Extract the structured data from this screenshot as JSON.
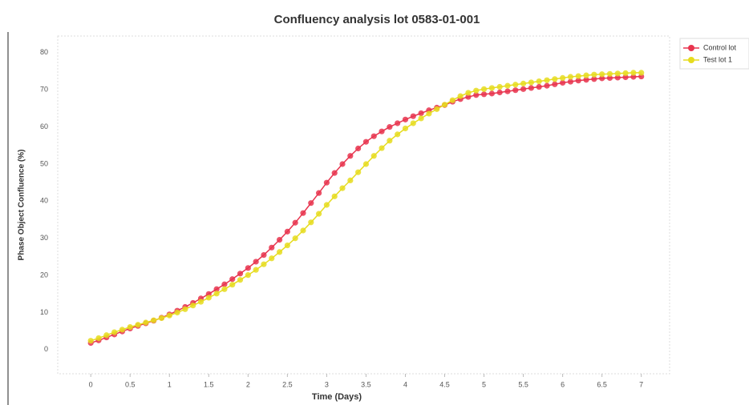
{
  "chart_data": {
    "type": "line",
    "title": "Confluency analysis lot 0583-01-001",
    "x_label": "Time (Days)",
    "y_label": "Phase Object Confluence (%)",
    "x": [
      0,
      0.1,
      0.2,
      0.3,
      0.4,
      0.5,
      0.6,
      0.7,
      0.8,
      0.9,
      1,
      1.1,
      1.2,
      1.3,
      1.4,
      1.5,
      1.6,
      1.7,
      1.8,
      1.9,
      2,
      2.1,
      2.2,
      2.3,
      2.4,
      2.5,
      2.6,
      2.7,
      2.8,
      2.9,
      3,
      3.1,
      3.2,
      3.3,
      3.4,
      3.5,
      3.6,
      3.7,
      3.8,
      3.9,
      4,
      4.1,
      4.2,
      4.3,
      4.4,
      4.5,
      4.6,
      4.7,
      4.8,
      4.9,
      5,
      5.1,
      5.2,
      5.3,
      5.4,
      5.5,
      5.6,
      5.7,
      5.8,
      5.9,
      6,
      6.1,
      6.2,
      6.3,
      6.4,
      6.5,
      6.6,
      6.7,
      6.8,
      6.9,
      7
    ],
    "series": [
      {
        "name": "Control lot",
        "color": "#e8344e",
        "values": [
          1.8,
          2.5,
          3.3,
          4.1,
          4.9,
          5.7,
          6.4,
          7.1,
          7.8,
          8.6,
          9.5,
          10.5,
          11.5,
          12.6,
          13.8,
          15.0,
          16.3,
          17.6,
          19.0,
          20.5,
          22.0,
          23.7,
          25.5,
          27.5,
          29.6,
          31.8,
          34.2,
          36.8,
          39.5,
          42.2,
          45.0,
          47.6,
          50.0,
          52.2,
          54.2,
          56.0,
          57.5,
          58.8,
          60.0,
          61.0,
          62.0,
          62.9,
          63.7,
          64.5,
          65.2,
          65.9,
          66.8,
          67.5,
          68.1,
          68.6,
          68.8,
          69.0,
          69.3,
          69.6,
          69.9,
          70.2,
          70.5,
          70.8,
          71.1,
          71.5,
          71.9,
          72.2,
          72.5,
          72.7,
          72.9,
          73.1,
          73.2,
          73.3,
          73.4,
          73.5,
          73.6
        ]
      },
      {
        "name": "Test lot 1",
        "color": "#e6dc1e",
        "values": [
          2.4,
          3.1,
          3.9,
          4.7,
          5.4,
          6.1,
          6.7,
          7.3,
          7.9,
          8.5,
          9.2,
          10.0,
          10.9,
          11.9,
          12.9,
          14.0,
          15.1,
          16.3,
          17.5,
          18.8,
          20.1,
          21.5,
          23.0,
          24.6,
          26.3,
          28.1,
          30.0,
          32.1,
          34.3,
          36.6,
          39.0,
          41.3,
          43.5,
          45.6,
          47.8,
          50.0,
          52.2,
          54.3,
          56.3,
          58.0,
          59.6,
          61.0,
          62.3,
          63.6,
          64.8,
          66.0,
          67.2,
          68.3,
          69.2,
          69.8,
          70.2,
          70.5,
          70.8,
          71.1,
          71.4,
          71.7,
          72.0,
          72.3,
          72.6,
          72.9,
          73.2,
          73.5,
          73.7,
          73.9,
          74.1,
          74.2,
          74.3,
          74.4,
          74.5,
          74.6,
          74.6
        ]
      }
    ],
    "xlim": [
      -0.42,
      7.36
    ],
    "ylim": [
      -6.5,
      84.5
    ],
    "xticks": [
      0,
      0.5,
      1,
      1.5,
      2,
      2.5,
      3,
      3.5,
      4,
      4.5,
      5,
      5.5,
      6,
      6.5,
      7
    ],
    "yticks": [
      0,
      10,
      20,
      30,
      40,
      50,
      60,
      70,
      80
    ],
    "grid": false,
    "legend": "upper right"
  }
}
